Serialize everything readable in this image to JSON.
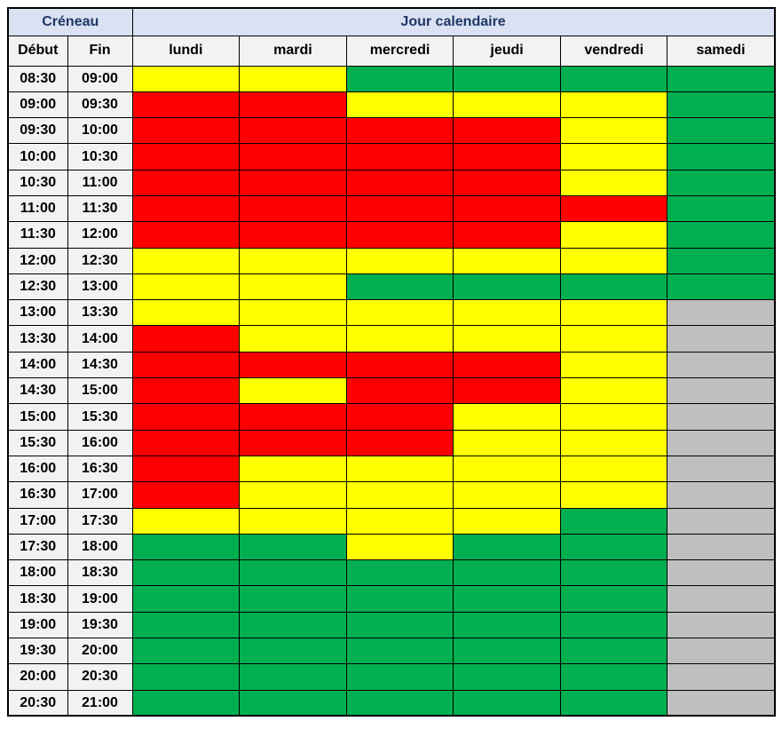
{
  "table": {
    "header": {
      "creneau": "Créneau",
      "jour_calendaire": "Jour calendaire",
      "debut": "Début",
      "fin": "Fin",
      "days": [
        "lundi",
        "mardi",
        "mercredi",
        "jeudi",
        "vendredi",
        "samedi"
      ]
    },
    "ui_colors": {
      "group_header_bg": "#d9e1f2",
      "group_header_text": "#1f3864",
      "col_header_bg": "#f2f2f2",
      "time_cell_bg": "#f2f2f2",
      "border": "#000000"
    }
  },
  "chart_data": {
    "type": "heatmap",
    "title": "Jour calendaire / Créneau availability grid",
    "columns": [
      "lundi",
      "mardi",
      "mercredi",
      "jeudi",
      "vendredi",
      "samedi"
    ],
    "row_axis": "Créneau (Début - Fin)",
    "color_map": {
      "red": "#ff0000",
      "yellow": "#ffff00",
      "green": "#00b050",
      "gray": "#bfbfbf"
    },
    "rows": [
      {
        "start": "08:30",
        "end": "09:00",
        "cells": [
          "yellow",
          "yellow",
          "green",
          "green",
          "green",
          "green"
        ]
      },
      {
        "start": "09:00",
        "end": "09:30",
        "cells": [
          "red",
          "red",
          "yellow",
          "yellow",
          "yellow",
          "green"
        ]
      },
      {
        "start": "09:30",
        "end": "10:00",
        "cells": [
          "red",
          "red",
          "red",
          "red",
          "yellow",
          "green"
        ]
      },
      {
        "start": "10:00",
        "end": "10:30",
        "cells": [
          "red",
          "red",
          "red",
          "red",
          "yellow",
          "green"
        ]
      },
      {
        "start": "10:30",
        "end": "11:00",
        "cells": [
          "red",
          "red",
          "red",
          "red",
          "yellow",
          "green"
        ]
      },
      {
        "start": "11:00",
        "end": "11:30",
        "cells": [
          "red",
          "red",
          "red",
          "red",
          "red",
          "green"
        ]
      },
      {
        "start": "11:30",
        "end": "12:00",
        "cells": [
          "red",
          "red",
          "red",
          "red",
          "yellow",
          "green"
        ]
      },
      {
        "start": "12:00",
        "end": "12:30",
        "cells": [
          "yellow",
          "yellow",
          "yellow",
          "yellow",
          "yellow",
          "green"
        ]
      },
      {
        "start": "12:30",
        "end": "13:00",
        "cells": [
          "yellow",
          "yellow",
          "green",
          "green",
          "green",
          "green"
        ]
      },
      {
        "start": "13:00",
        "end": "13:30",
        "cells": [
          "yellow",
          "yellow",
          "yellow",
          "yellow",
          "yellow",
          "gray"
        ]
      },
      {
        "start": "13:30",
        "end": "14:00",
        "cells": [
          "red",
          "yellow",
          "yellow",
          "yellow",
          "yellow",
          "gray"
        ]
      },
      {
        "start": "14:00",
        "end": "14:30",
        "cells": [
          "red",
          "red",
          "red",
          "red",
          "yellow",
          "gray"
        ]
      },
      {
        "start": "14:30",
        "end": "15:00",
        "cells": [
          "red",
          "yellow",
          "red",
          "red",
          "yellow",
          "gray"
        ]
      },
      {
        "start": "15:00",
        "end": "15:30",
        "cells": [
          "red",
          "red",
          "red",
          "yellow",
          "yellow",
          "gray"
        ]
      },
      {
        "start": "15:30",
        "end": "16:00",
        "cells": [
          "red",
          "red",
          "red",
          "yellow",
          "yellow",
          "gray"
        ]
      },
      {
        "start": "16:00",
        "end": "16:30",
        "cells": [
          "red",
          "yellow",
          "yellow",
          "yellow",
          "yellow",
          "gray"
        ]
      },
      {
        "start": "16:30",
        "end": "17:00",
        "cells": [
          "red",
          "yellow",
          "yellow",
          "yellow",
          "yellow",
          "gray"
        ]
      },
      {
        "start": "17:00",
        "end": "17:30",
        "cells": [
          "yellow",
          "yellow",
          "yellow",
          "yellow",
          "green",
          "gray"
        ]
      },
      {
        "start": "17:30",
        "end": "18:00",
        "cells": [
          "green",
          "green",
          "yellow",
          "green",
          "green",
          "gray"
        ]
      },
      {
        "start": "18:00",
        "end": "18:30",
        "cells": [
          "green",
          "green",
          "green",
          "green",
          "green",
          "gray"
        ]
      },
      {
        "start": "18:30",
        "end": "19:00",
        "cells": [
          "green",
          "green",
          "green",
          "green",
          "green",
          "gray"
        ]
      },
      {
        "start": "19:00",
        "end": "19:30",
        "cells": [
          "green",
          "green",
          "green",
          "green",
          "green",
          "gray"
        ]
      },
      {
        "start": "19:30",
        "end": "20:00",
        "cells": [
          "green",
          "green",
          "green",
          "green",
          "green",
          "gray"
        ]
      },
      {
        "start": "20:00",
        "end": "20:30",
        "cells": [
          "green",
          "green",
          "green",
          "green",
          "green",
          "gray"
        ]
      },
      {
        "start": "20:30",
        "end": "21:00",
        "cells": [
          "green",
          "green",
          "green",
          "green",
          "green",
          "gray"
        ]
      }
    ]
  }
}
